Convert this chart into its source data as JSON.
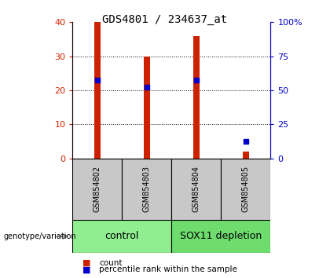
{
  "title": "GDS4801 / 234637_at",
  "samples": [
    "GSM854802",
    "GSM854803",
    "GSM854804",
    "GSM854805"
  ],
  "counts": [
    40,
    30,
    36,
    2
  ],
  "percentiles": [
    23,
    21,
    23,
    5
  ],
  "groups": [
    {
      "label": "control",
      "span": [
        0,
        2
      ],
      "color": "#90ee90"
    },
    {
      "label": "SOX11 depletion",
      "span": [
        2,
        4
      ],
      "color": "#6edd6e"
    }
  ],
  "bar_color": "#cc2200",
  "marker_color": "#0000cc",
  "left_ylim": [
    0,
    40
  ],
  "right_ylim": [
    0,
    100
  ],
  "left_yticks": [
    0,
    10,
    20,
    30,
    40
  ],
  "right_yticks": [
    0,
    25,
    50,
    75,
    100
  ],
  "right_yticklabels": [
    "0",
    "25",
    "50",
    "75",
    "100%"
  ],
  "left_tick_color": "#cc2200",
  "right_tick_color": "#0000cc",
  "bg_color": "#ffffff",
  "plot_bg": "#ffffff",
  "sample_box_color": "#c8c8c8",
  "group_label_fontsize": 9,
  "title_fontsize": 10,
  "legend_count_label": "count",
  "legend_percentile_label": "percentile rank within the sample",
  "arrow_label": "genotype/variation",
  "bar_width": 0.12,
  "gridline_yticks": [
    10,
    20,
    30
  ],
  "marker_size": 5
}
